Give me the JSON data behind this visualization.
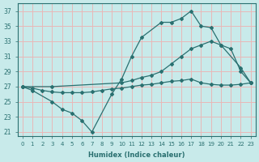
{
  "xlabel": "Humidex (Indice chaleur)",
  "bg_color": "#c8eaea",
  "grid_color": "#e8b8b8",
  "line_color": "#2a7070",
  "xlim": [
    -0.5,
    23.5
  ],
  "ylim": [
    20.5,
    38
  ],
  "yticks": [
    21,
    23,
    25,
    27,
    29,
    31,
    33,
    35,
    37
  ],
  "xticks": [
    0,
    1,
    2,
    3,
    4,
    5,
    6,
    7,
    8,
    9,
    10,
    11,
    12,
    13,
    14,
    15,
    16,
    17,
    18,
    19,
    20,
    21,
    22,
    23
  ],
  "line1_x": [
    0,
    1,
    3,
    4,
    5,
    6,
    7,
    9,
    10,
    11,
    12,
    14,
    15,
    16,
    17,
    18,
    19,
    20,
    22,
    23
  ],
  "line1_y": [
    27,
    26.5,
    25,
    24,
    23.5,
    22.5,
    21,
    26,
    28,
    31,
    33.5,
    35.5,
    35.5,
    36,
    37,
    35.0,
    34.8,
    32.5,
    29.5,
    27.5
  ],
  "line2_x": [
    0,
    3,
    10,
    11,
    12,
    13,
    14,
    15,
    16,
    17,
    18,
    19,
    20,
    21,
    22,
    23
  ],
  "line2_y": [
    27,
    27,
    27.5,
    27.8,
    28.2,
    28.5,
    29,
    30,
    31,
    32,
    32.5,
    33,
    32.5,
    32,
    29,
    27.5
  ],
  "line3_x": [
    0,
    1,
    2,
    3,
    4,
    5,
    6,
    7,
    8,
    9,
    10,
    11,
    12,
    13,
    14,
    15,
    16,
    17,
    18,
    19,
    20,
    21,
    22,
    23
  ],
  "line3_y": [
    27,
    26.8,
    26.5,
    26.3,
    26.2,
    26.2,
    26.2,
    26.3,
    26.5,
    26.7,
    26.8,
    27.0,
    27.2,
    27.3,
    27.5,
    27.7,
    27.8,
    28.0,
    27.5,
    27.3,
    27.2,
    27.2,
    27.3,
    27.5
  ]
}
